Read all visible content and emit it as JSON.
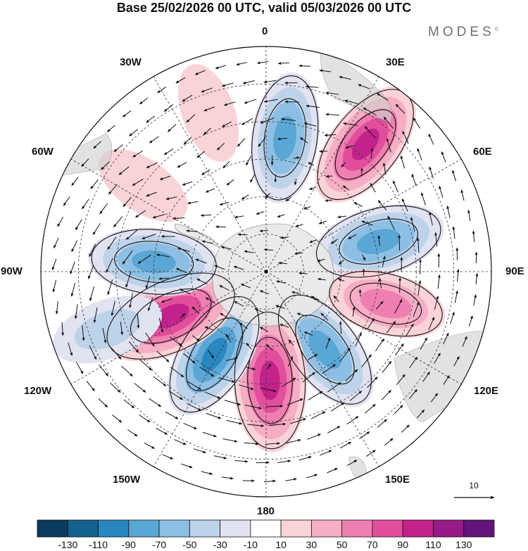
{
  "title": "Base 25/02/2026 00 UTC, valid 05/03/2026 00 UTC",
  "brand": "MODES",
  "brand_mark": "©",
  "longitude_labels": {
    "lon_0": "0",
    "lon_30e": "30E",
    "lon_60e": "60E",
    "lon_90e": "90E",
    "lon_120e": "120E",
    "lon_150e": "150E",
    "lon_180": "180",
    "lon_150w": "150W",
    "lon_120w": "120W",
    "lon_90w": "90W",
    "lon_60w": "60W",
    "lon_30w": "30W"
  },
  "vector_reference": {
    "value": "10"
  },
  "colorbar": {
    "labels": [
      "-130",
      "-110",
      "-90",
      "-70",
      "-50",
      "-30",
      "-10",
      "10",
      "30",
      "50",
      "70",
      "90",
      "110",
      "130"
    ],
    "colors": [
      "#0b3b5e",
      "#13618f",
      "#2a86c0",
      "#5aa6d5",
      "#8cbfe3",
      "#bdd3ea",
      "#e2e3f1",
      "#ffffff",
      "#f9d3d7",
      "#f6aec4",
      "#ef7fb0",
      "#e14f9c",
      "#c3228a",
      "#961a87",
      "#621479"
    ]
  },
  "anomaly_centers": [
    {
      "lon": 8,
      "colat": 36,
      "value": -90
    },
    {
      "lon": 38,
      "colat": 43,
      "value": 100
    },
    {
      "lon": 75,
      "colat": 31,
      "value": -95
    },
    {
      "lon": 105,
      "colat": 33,
      "value": 70
    },
    {
      "lon": 143,
      "colat": 26,
      "value": -95
    },
    {
      "lon": 178,
      "colat": 29,
      "value": 115
    },
    {
      "lon": -148,
      "colat": 26,
      "value": -100
    },
    {
      "lon": -115,
      "colat": 28,
      "value": 115
    },
    {
      "lon": -85,
      "colat": 30,
      "value": -90
    },
    {
      "lon": -110,
      "colat": 45,
      "value": -55
    },
    {
      "lon": -55,
      "colat": 40,
      "value": 30
    },
    {
      "lon": -20,
      "colat": 45,
      "value": 30
    }
  ]
}
